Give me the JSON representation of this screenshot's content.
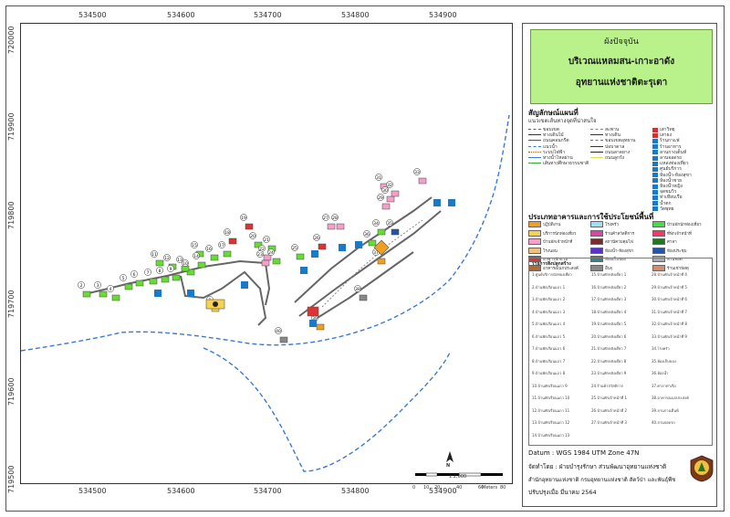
{
  "map": {
    "x_ticks": [
      "534500",
      "534600",
      "534700",
      "534800",
      "534900"
    ],
    "y_ticks": [
      "720000",
      "719900",
      "719800",
      "719700",
      "719600",
      "719500"
    ],
    "building_labels": [
      "1",
      "2",
      "3",
      "4",
      "5",
      "6",
      "7",
      "8",
      "9",
      "10",
      "11",
      "12",
      "13",
      "14",
      "15",
      "16",
      "17",
      "18",
      "19",
      "20",
      "21",
      "22",
      "23",
      "24",
      "25",
      "26",
      "27",
      "28",
      "29",
      "30",
      "31",
      "32",
      "33",
      "34",
      "35",
      "36",
      "37",
      "38",
      "39",
      "40"
    ],
    "scale_ratio": "1:2,000",
    "scale_units": "Meters",
    "scale_ticks": [
      "0",
      "10",
      "20",
      "40",
      "60",
      "80"
    ],
    "north_label": "N"
  },
  "title": {
    "line1": "ผังปัจจุบัน",
    "line2": "บริเวณแหลมสน-เกาะอาดัง",
    "line3": "อุทยานแห่งชาติตะรุเตา"
  },
  "legend": {
    "title": "สัญลักษณ์แผนที่",
    "subtitle": "แนวเขตเส้นทางจุดที่น่าสนใจ",
    "items": [
      {
        "label": "ขอบเขต",
        "color": "#cc3333",
        "style": "dashed"
      },
      {
        "label": "ทางเดินไม้",
        "color": "#333333",
        "style": "solid"
      },
      {
        "label": "ถนนคอนกรีต",
        "color": "#555555",
        "style": "double"
      },
      {
        "label": "แนวน้ำ",
        "color": "#3a7ad8",
        "style": "dashed"
      },
      {
        "label": "ระบบไฟฟ้า",
        "color": "#996633",
        "style": "dotted"
      },
      {
        "label": "ทางน้ำไหลผ่าน",
        "color": "#3a7ad8",
        "style": "solid"
      },
      {
        "label": "เส้นทางศึกษาธรรมชาติ",
        "color": "#33aa33",
        "style": "solid"
      },
      {
        "label": "สะพาน",
        "color": "#cc6666",
        "style": "dashed"
      },
      {
        "label": "ทางเดิน",
        "color": "#333333",
        "style": "solid"
      },
      {
        "label": "ขอบเขตอุทยาน",
        "color": "#3a7ad8",
        "style": "dashed"
      },
      {
        "label": "บ่อบาดาล",
        "color": "#333333",
        "style": "solid"
      },
      {
        "label": "ถนนลาดยาง",
        "color": "#222222",
        "style": "solid"
      },
      {
        "label": "ถนนลูกรัง",
        "color": "#dddd55",
        "style": "solid"
      },
      {
        "label": "เสาวิทยุ",
        "color": "#cc3333",
        "style": "icon"
      },
      {
        "label": "เสาธง",
        "color": "#cc3333",
        "style": "icon"
      },
      {
        "label": "ร้านกาแฟ",
        "color": "#1a7ac8",
        "style": "icon"
      },
      {
        "label": "ร้านอาหาร",
        "color": "#1a7ac8",
        "style": "icon"
      },
      {
        "label": "ลานกางเต็นท์",
        "color": "#1a7ac8",
        "style": "icon"
      },
      {
        "label": "ลานจอดรถ",
        "color": "#1a7ac8",
        "style": "icon"
      },
      {
        "label": "แหล่งท่องเที่ยว",
        "color": "#1a7ac8",
        "style": "icon"
      },
      {
        "label": "ศูนย์บริการ",
        "color": "#1a7ac8",
        "style": "icon"
      },
      {
        "label": "ห้องน้ำ-ห้องสุขา",
        "color": "#1a7ac8",
        "style": "icon"
      },
      {
        "label": "ห้องน้ำชาย",
        "color": "#1a7ac8",
        "style": "icon"
      },
      {
        "label": "ห้องน้ำหญิง",
        "color": "#1a7ac8",
        "style": "icon"
      },
      {
        "label": "จุดชมวิว",
        "color": "#1a7ac8",
        "style": "icon"
      },
      {
        "label": "ท่าเทียบเรือ",
        "color": "#1a7ac8",
        "style": "icon"
      },
      {
        "label": "น้ำตก",
        "color": "#1a7ac8",
        "style": "icon"
      },
      {
        "label": "วัดพุทธ",
        "color": "#1a7ac8",
        "style": "icon"
      }
    ]
  },
  "landuse": {
    "title": "ประเภทอาคารและการใช้ประโยชน์พื้นที่",
    "items": [
      {
        "label": "ปฏิบัติงาน",
        "color": "#f0a020"
      },
      {
        "label": "บริการนักท่องเที่ยว",
        "color": "#f7d24a"
      },
      {
        "label": "บ้านพักเจ้าหน้าที่",
        "color": "#f5a0c8"
      },
      {
        "label": "โรงนอน",
        "color": "#f0c080"
      },
      {
        "label": "อาคารพักแรม",
        "color": "#dd3333"
      },
      {
        "label": "อาคารอเนกประสงค์",
        "color": "#b06a30"
      },
      {
        "label": "โรงครัว",
        "color": "#a0e0f0"
      },
      {
        "label": "ร้านค้าสวัสดิการ",
        "color": "#dd44aa"
      },
      {
        "label": "สถานีควบคุมไฟ",
        "color": "#7a2c2c"
      },
      {
        "label": "ห้องน้ำ-ห้องสุขา",
        "color": "#5533cc"
      },
      {
        "label": "ห้องเก็บของ",
        "color": "#2a8a8a"
      },
      {
        "label": "อื่นๆ",
        "color": "#888888"
      },
      {
        "label": "บ้านพักนักท่องเที่ยว",
        "color": "#44dd44"
      },
      {
        "label": "ที่พักเจ้าหน้าที่",
        "color": "#ff3366"
      },
      {
        "label": "ศาลา",
        "color": "#227722"
      },
      {
        "label": "ห้องประชุม",
        "color": "#2255aa"
      },
      {
        "label": "ลานจอด",
        "color": "#aaaaaa"
      },
      {
        "label": "ร้านเช่าพัสดุ",
        "color": "#d98a6a"
      }
    ]
  },
  "buildings": {
    "title": "รายการสิ่งปลูกสร้าง",
    "col1": [
      "1.ศูนย์บริการนักท่องเที่ยว",
      "2.บ้านพักเรือนแถว 1",
      "3.บ้านพักเรือนแถว 2",
      "4.บ้านพักเรือนแถว 3",
      "5.บ้านพักเรือนแถว 4",
      "6.บ้านพักเรือนแถว 5",
      "7.บ้านพักเรือนแถว 6",
      "8.บ้านพักเรือนแถว 7",
      "9.บ้านพักเรือนแถว 8",
      "10.บ้านพักเรือนแถว 9",
      "11.บ้านพักเรือนแถว 10",
      "12.บ้านพักเรือนแถว 11",
      "13.บ้านพักเรือนแถว 12",
      "14.บ้านพักเรือนแถว 13"
    ],
    "col2": [
      "15.บ้านพักหลังเดี่ยว 1",
      "16.บ้านพักหลังเดี่ยว 2",
      "17.บ้านพักหลังเดี่ยว 3",
      "18.บ้านพักหลังเดี่ยว 4",
      "19.บ้านพักหลังเดี่ยว 5",
      "20.บ้านพักหลังเดี่ยว 6",
      "21.บ้านพักหลังเดี่ยว 7",
      "22.บ้านพักหลังเดี่ยว 8",
      "23.บ้านพักหลังเดี่ยว 9",
      "24.ร้านค้าสวัสดิการ",
      "25.บ้านพักเจ้าหน้าที่ 1",
      "26.บ้านพักเจ้าหน้าที่ 2",
      "27.บ้านพักเจ้าหน้าที่ 3"
    ],
    "col3": [
      "28.บ้านพักเจ้าหน้าที่ 4",
      "29.บ้านพักเจ้าหน้าที่ 5",
      "30.บ้านพักเจ้าหน้าที่ 6",
      "31.บ้านพักเจ้าหน้าที่ 7",
      "32.บ้านพักเจ้าหน้าที่ 8",
      "33.บ้านพักเจ้าหน้าที่ 9",
      "34.โรงครัว",
      "35.ห้องเก็บของ",
      "36.ห้องน้ำ",
      "37.ศาลาท่าเรือ",
      "38.อาคารอเนกประสงค์",
      "39.ลานกางเต็นท์",
      "40.ลานจอดรถ"
    ]
  },
  "footer": {
    "datum": "Datum : WGS 1984 UTM Zone 47N",
    "made_by": "จัดทำโดย : ฝ่ายบำรุงรักษา ส่วนพัฒนาอุทยานแห่งชาติ",
    "org": "สำนักอุทยานแห่งชาติ กรมอุทยานแห่งชาติ สัตว์ป่า และพันธุ์พืช",
    "updated": "ปรับปรุงเมื่อ มีนาคม 2564"
  },
  "colors": {
    "title_bg": "#b9f28a",
    "coastline": "#3a7ad8",
    "building_green": "#66dd33",
    "road": "#666666"
  }
}
